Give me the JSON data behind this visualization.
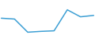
{
  "x": [
    0,
    1,
    2,
    3,
    4,
    5,
    6,
    7
  ],
  "y": [
    55,
    52,
    5,
    8,
    10,
    85,
    60,
    65
  ],
  "line_color": "#3c9fd4",
  "linewidth": 1.1,
  "background_color": "#ffffff",
  "ylim": [
    -5,
    120
  ],
  "xlim": [
    -0.1,
    7.1
  ]
}
